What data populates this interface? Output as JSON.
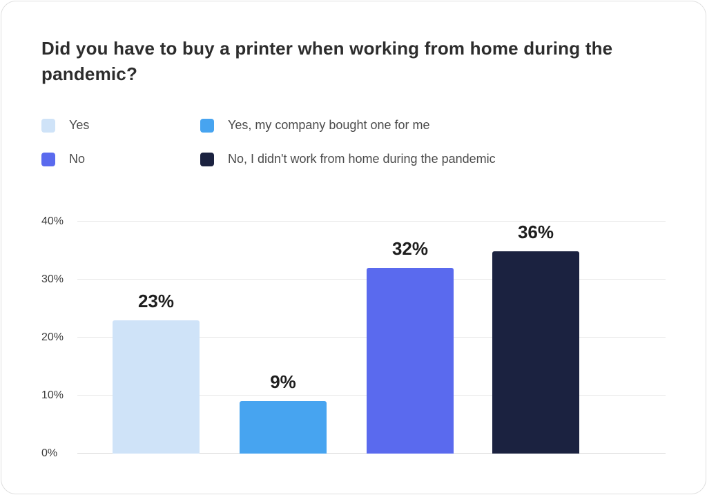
{
  "chart_data": {
    "type": "bar",
    "title": "Did you have to buy a printer when working from home during the pandemic?",
    "categories": [
      "Yes",
      "Yes, my company bought one for me",
      "No",
      "No, I didn't work from home during the pandemic"
    ],
    "values": [
      23,
      9,
      32,
      36
    ],
    "value_labels": [
      "23%",
      "9%",
      "32%",
      "36%"
    ],
    "colors": [
      "#cfe3f8",
      "#47a4f0",
      "#5a6aee",
      "#1b2240"
    ],
    "ylim": [
      0,
      40
    ],
    "yticks": [
      "0%",
      "10%",
      "20%",
      "30%",
      "40%"
    ],
    "grid": true,
    "legend_position": "top-left",
    "xlabel": "",
    "ylabel": ""
  }
}
